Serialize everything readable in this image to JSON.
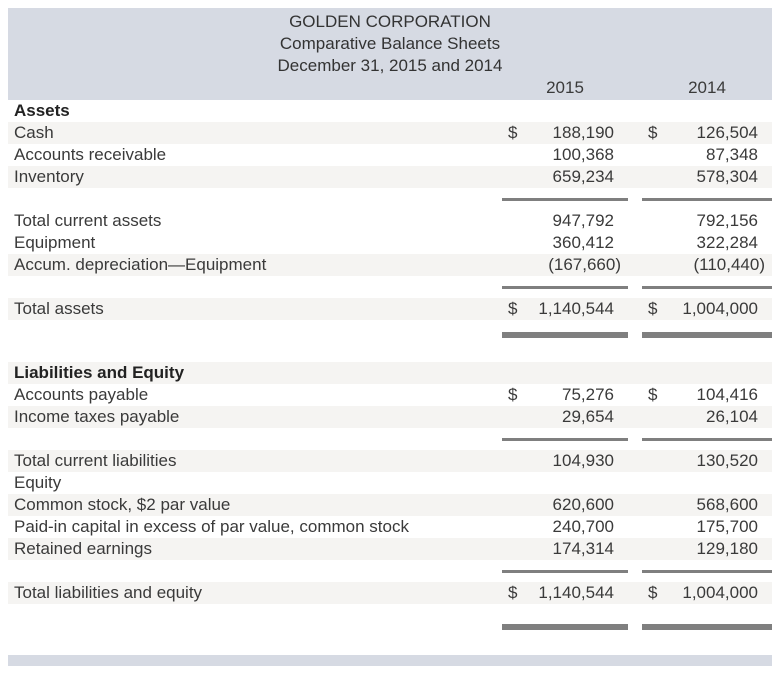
{
  "report": {
    "company": "GOLDEN CORPORATION",
    "title": "Comparative Balance Sheets",
    "date_line": "December 31, 2015 and 2014"
  },
  "columns": {
    "year1": "2015",
    "year2": "2014"
  },
  "colors": {
    "header_band": "#d6dae3",
    "row_shade": "#f5f4f2",
    "rule": "#7f7f7f",
    "text": "#3a3a3a"
  },
  "table": {
    "rows": [
      {
        "label": "Assets",
        "bold": true,
        "shaded": false
      },
      {
        "label": "Cash",
        "shaded": true,
        "y2015": {
          "d": "$",
          "v": "188,190"
        },
        "y2014": {
          "d": "$",
          "v": "126,504"
        }
      },
      {
        "label": "Accounts receivable",
        "shaded": false,
        "y2015": {
          "v": "100,368"
        },
        "y2014": {
          "v": "87,348"
        }
      },
      {
        "label": "Inventory",
        "shaded": true,
        "y2015": {
          "v": "659,234"
        },
        "y2014": {
          "v": "578,304"
        }
      },
      {
        "type": "rule"
      },
      {
        "label": "Total current assets",
        "shaded": false,
        "y2015": {
          "v": "947,792"
        },
        "y2014": {
          "v": "792,156"
        }
      },
      {
        "label": "Equipment",
        "shaded": false,
        "y2015": {
          "v": "360,412"
        },
        "y2014": {
          "v": "322,284"
        }
      },
      {
        "label": "Accum. depreciation—Equipment",
        "shaded": true,
        "y2015": {
          "v": "(167,660)"
        },
        "y2014": {
          "v": "(110,440)"
        }
      },
      {
        "type": "rule"
      },
      {
        "label": "Total assets",
        "shaded": true,
        "y2015": {
          "d": "$",
          "v": "1,140,544"
        },
        "y2014": {
          "d": "$",
          "v": "1,004,000"
        }
      },
      {
        "type": "double-rule"
      },
      {
        "type": "gap",
        "h": 12
      },
      {
        "label": "Liabilities and Equity",
        "bold": true,
        "shaded": true
      },
      {
        "label": "Accounts payable",
        "shaded": false,
        "y2015": {
          "d": "$",
          "v": "75,276"
        },
        "y2014": {
          "d": "$",
          "v": "104,416"
        }
      },
      {
        "label": "Income taxes payable",
        "shaded": true,
        "y2015": {
          "v": "29,654"
        },
        "y2014": {
          "v": "26,104"
        }
      },
      {
        "type": "rule"
      },
      {
        "label": "Total current liabilities",
        "shaded": true,
        "y2015": {
          "v": "104,930"
        },
        "y2014": {
          "v": "130,520"
        }
      },
      {
        "label": "Equity",
        "shaded": false
      },
      {
        "label": "Common stock, $2 par value",
        "shaded": true,
        "y2015": {
          "v": "620,600"
        },
        "y2014": {
          "v": "568,600"
        }
      },
      {
        "label": "Paid-in capital in excess of par value, common stock",
        "shaded": false,
        "y2015": {
          "v": "240,700"
        },
        "y2014": {
          "v": "175,700"
        }
      },
      {
        "label": "Retained earnings",
        "shaded": true,
        "y2015": {
          "v": "174,314"
        },
        "y2014": {
          "v": "129,180"
        }
      },
      {
        "type": "rule"
      },
      {
        "label": "Total liabilities and equity",
        "shaded": true,
        "y2015": {
          "d": "$",
          "v": "1,140,544"
        },
        "y2014": {
          "d": "$",
          "v": "1,004,000"
        }
      },
      {
        "type": "gap",
        "h": 8
      },
      {
        "type": "double-rule"
      }
    ]
  }
}
